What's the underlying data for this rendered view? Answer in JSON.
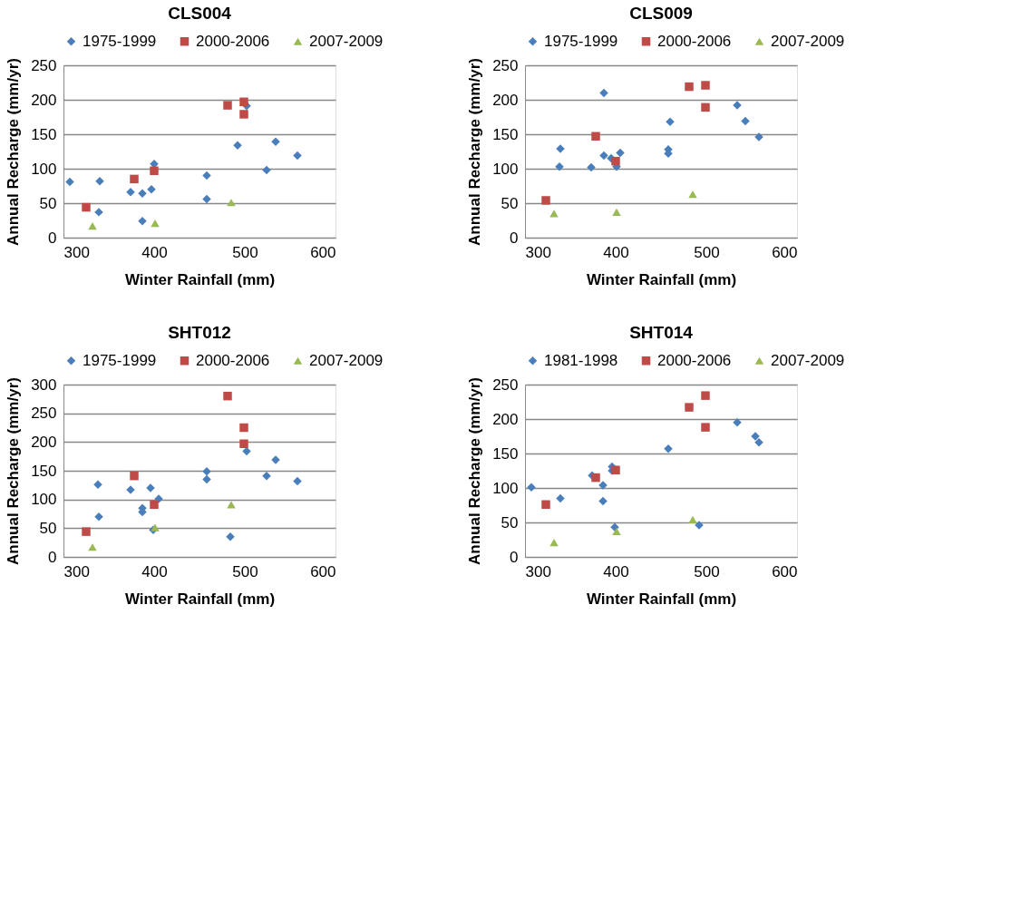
{
  "chart_data": [
    {
      "type": "scatter",
      "title": "CLS004",
      "xlabel": "Winter Rainfall (mm)",
      "ylabel": "Annual Recharge (mm/yr)",
      "xlim": [
        300,
        600
      ],
      "xticks": [
        300,
        400,
        500,
        600
      ],
      "ylim": [
        0,
        250
      ],
      "yticks": [
        0,
        50,
        100,
        150,
        200,
        250
      ],
      "grid": "y",
      "legend": "top",
      "series": [
        {
          "name": "1975-1999",
          "color": "#4a7ebb",
          "marker": "diamond",
          "x": [
            307,
            340,
            339,
            374,
            387,
            387,
            397,
            400,
            458,
            458,
            492,
            502,
            524,
            534,
            558
          ],
          "values": [
            81,
            82,
            37,
            66,
            64,
            24,
            70,
            107,
            90,
            56,
            134,
            191,
            98,
            139,
            119
          ]
        },
        {
          "name": "2000-2006",
          "color": "#be4b48",
          "marker": "square",
          "x": [
            325,
            378,
            400,
            481,
            499,
            499
          ],
          "values": [
            44,
            85,
            97,
            192,
            197,
            179
          ]
        },
        {
          "name": "2007-2009",
          "color": "#98b954",
          "marker": "triangle",
          "x": [
            332,
            401,
            485
          ],
          "values": [
            17,
            21,
            51
          ]
        }
      ]
    },
    {
      "type": "scatter",
      "title": "CLS009",
      "xlabel": "Winter Rainfall (mm)",
      "ylabel": "Annual Recharge (mm/yr)",
      "xlim": [
        300,
        600
      ],
      "xticks": [
        300,
        400,
        500,
        600
      ],
      "ylim": [
        0,
        250
      ],
      "yticks": [
        0,
        50,
        100,
        150,
        200,
        250
      ],
      "grid": "y",
      "legend": "top",
      "series": [
        {
          "name": "1975-1999",
          "color": "#4a7ebb",
          "marker": "diamond",
          "x": [
            338,
            339,
            373,
            387,
            387,
            395,
            401,
            405,
            458,
            458,
            460,
            534,
            543,
            558
          ],
          "values": [
            103,
            129,
            102,
            119,
            210,
            115,
            103,
            123,
            128,
            122,
            168,
            192,
            169,
            146
          ]
        },
        {
          "name": "2000-2006",
          "color": "#be4b48",
          "marker": "square",
          "x": [
            323,
            378,
            400,
            481,
            499,
            499
          ],
          "values": [
            54,
            147,
            111,
            219,
            221,
            189
          ]
        },
        {
          "name": "2007-2009",
          "color": "#98b954",
          "marker": "triangle",
          "x": [
            332,
            401,
            485
          ],
          "values": [
            35,
            37,
            63
          ]
        }
      ]
    },
    {
      "type": "scatter",
      "title": "SHT012",
      "xlabel": "Winter Rainfall (mm)",
      "ylabel": "Annual Recharge (mm/yr)",
      "xlim": [
        300,
        600
      ],
      "xticks": [
        300,
        400,
        500,
        600
      ],
      "ylim": [
        0,
        300
      ],
      "yticks": [
        0,
        50,
        100,
        150,
        200,
        250,
        300
      ],
      "grid": "y",
      "legend": "top",
      "series": [
        {
          "name": "1975-1999",
          "color": "#4a7ebb",
          "marker": "diamond",
          "x": [
            338,
            339,
            374,
            387,
            387,
            396,
            399,
            405,
            458,
            458,
            484,
            502,
            524,
            534,
            558
          ],
          "values": [
            126,
            70,
            117,
            85,
            78,
            120,
            47,
            101,
            149,
            135,
            35,
            184,
            141,
            169,
            132
          ]
        },
        {
          "name": "2000-2006",
          "color": "#be4b48",
          "marker": "square",
          "x": [
            325,
            378,
            400,
            481,
            499,
            499
          ],
          "values": [
            44,
            141,
            91,
            280,
            225,
            197
          ]
        },
        {
          "name": "2007-2009",
          "color": "#98b954",
          "marker": "triangle",
          "x": [
            332,
            401,
            485
          ],
          "values": [
            17,
            51,
            91
          ]
        }
      ]
    },
    {
      "type": "scatter",
      "title": "SHT014",
      "xlabel": "Winter Rainfall (mm)",
      "ylabel": "Annual Recharge (mm/yr)",
      "xlim": [
        300,
        600
      ],
      "xticks": [
        300,
        400,
        500,
        600
      ],
      "ylim": [
        0,
        250
      ],
      "yticks": [
        0,
        50,
        100,
        150,
        200,
        250
      ],
      "grid": "y",
      "legend": "top",
      "series": [
        {
          "name": "1981-1998",
          "color": "#4a7ebb",
          "marker": "diamond",
          "x": [
            307,
            339,
            374,
            386,
            386,
            396,
            396,
            399,
            458,
            492,
            534,
            554,
            558
          ],
          "values": [
            101,
            85,
            118,
            104,
            81,
            131,
            125,
            43,
            157,
            46,
            195,
            175,
            166
          ]
        },
        {
          "name": "2000-2006",
          "color": "#be4b48",
          "marker": "square",
          "x": [
            323,
            378,
            400,
            481,
            499,
            499
          ],
          "values": [
            76,
            115,
            126,
            217,
            234,
            188
          ]
        },
        {
          "name": "2007-2009",
          "color": "#98b954",
          "marker": "triangle",
          "x": [
            332,
            401,
            485
          ],
          "values": [
            21,
            37,
            54
          ]
        }
      ]
    }
  ]
}
